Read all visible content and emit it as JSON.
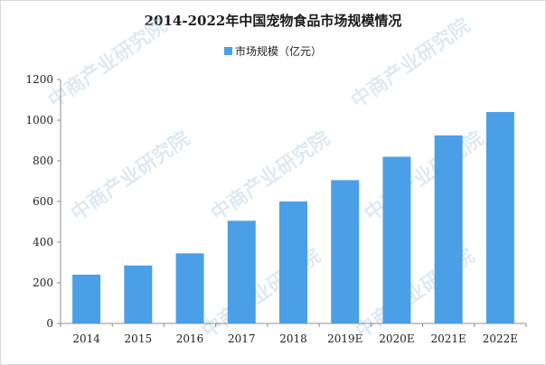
{
  "chart_data": {
    "type": "bar",
    "title": "2014-2022年中国宠物食品市场规模情况",
    "categories": [
      "2014",
      "2015",
      "2016",
      "2017",
      "2018",
      "2019E",
      "2020E",
      "2021E",
      "2022E"
    ],
    "series": [
      {
        "name": "市场规模（亿元）",
        "values": [
          240,
          285,
          345,
          505,
          600,
          705,
          820,
          925,
          1040
        ],
        "color": "#4b9fe6"
      }
    ],
    "xlabel": "",
    "ylabel": "",
    "ylim": [
      0,
      1200
    ],
    "yticks": [
      0,
      200,
      400,
      600,
      800,
      1000,
      1200
    ],
    "grid": false,
    "legend_position": "top-center"
  },
  "watermark": {
    "text": "中商产业研究院",
    "color": "#b9cfe2"
  }
}
